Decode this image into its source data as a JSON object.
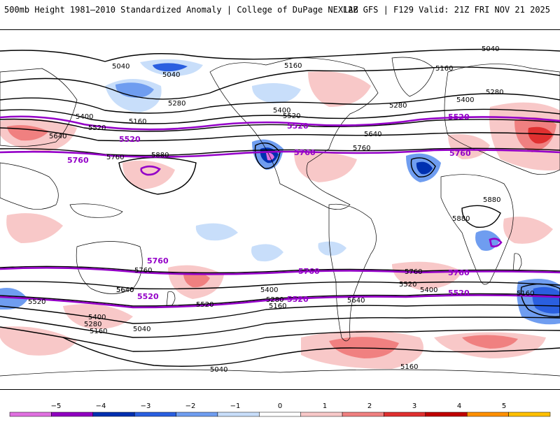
{
  "header": {
    "left": "500mb Height 1981–2010 Standardized Anomaly | College of DuPage NEXLAB",
    "right": "12Z GFS | F129 Valid: 21Z FRI NOV 21 2025"
  },
  "map": {
    "projection": "global cylindrical",
    "contour_labels_black": [
      "5040",
      "5040",
      "5040",
      "5160",
      "5160",
      "5160",
      "5280",
      "5280",
      "5280",
      "5400",
      "5400",
      "5400",
      "5520",
      "5520",
      "5640",
      "5640",
      "5760",
      "5760",
      "5880",
      "5880",
      "5160",
      "5400",
      "5520",
      "5640",
      "5160",
      "5280",
      "5400",
      "5520",
      "5640",
      "5760",
      "5040",
      "5160",
      "5280",
      "5400",
      "5520",
      "5640",
      "5760",
      "5880",
      "5040",
      "5160"
    ],
    "contour_labels_purple": [
      "5520",
      "5520",
      "5760",
      "5760",
      "5760",
      "5520",
      "5760",
      "5760",
      "5520",
      "5520",
      "5760",
      "5520"
    ],
    "colors": {
      "contour": "#000000",
      "highlight_contour": "#9400c8"
    }
  },
  "colorbar": {
    "ticks": [
      "−5",
      "−4",
      "−3",
      "−2",
      "−1",
      "0",
      "1",
      "2",
      "3",
      "4",
      "5"
    ],
    "colors": [
      "#e070e0",
      "#9000c0",
      "#0030b0",
      "#2a5fe0",
      "#6f9df0",
      "#c8defa",
      "#ffffff",
      "#f8c8c8",
      "#f08080",
      "#e03030",
      "#c00000",
      "#ff9000",
      "#ffc000"
    ]
  }
}
